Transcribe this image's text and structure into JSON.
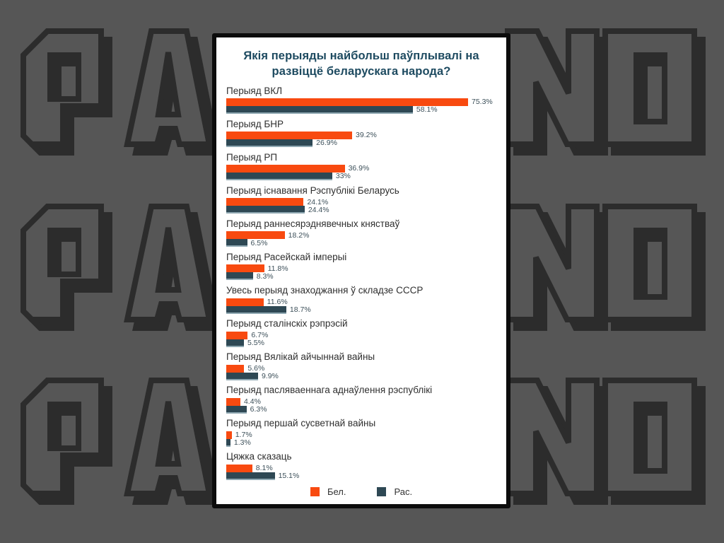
{
  "watermark": {
    "visible_left_text": "PA",
    "visible_right_text": "NO",
    "rows": 3
  },
  "colors": {
    "background": "#565656",
    "watermark_ink": "#2c2c2c",
    "card_border": "#0c0c0c",
    "card_background": "#ffffff",
    "title_text": "#1d4a60",
    "category_text": "#2f2f2f",
    "value_text": "#3c4f59",
    "bel_orange": "#f84a10",
    "ras_navy": "#2e4854"
  },
  "chart_data": {
    "type": "bar",
    "orientation": "horizontal",
    "title": "Якія перыяды найбольш паўплывалі на развіццё беларускага народа?",
    "categories": [
      "Перыяд ВКЛ",
      "Перыяд БНР",
      "Перыяд РП",
      "Перыяд існавання Рэспублікі Беларусь",
      "Перыяд раннесярэднявечных княстваў",
      "Перыяд Расейскай імперыі",
      "Увесь перыяд знаходжання ў складзе СССР",
      "Перыяд сталінскіх рэпрэсій",
      "Перыяд Вялікай айчыннай вайны",
      "Перыяд пасляваеннага аднаўлення рэспублікі",
      "Перыяд першай сусветнай вайны",
      "Цяжка сказаць"
    ],
    "series": [
      {
        "name": "Бел.",
        "color": "#f84a10",
        "values": [
          75.3,
          39.2,
          36.9,
          24.1,
          18.2,
          11.8,
          11.6,
          6.7,
          5.6,
          4.4,
          1.7,
          8.1
        ],
        "labels": [
          "75.3%",
          "39.2%",
          "36.9%",
          "24.1%",
          "18.2%",
          "11.8%",
          "11.6%",
          "6.7%",
          "5.6%",
          "4.4%",
          "1.7%",
          "8.1%"
        ]
      },
      {
        "name": "Рас.",
        "color": "#2e4854",
        "values": [
          58.1,
          26.9,
          33,
          24.4,
          6.5,
          8.3,
          18.7,
          5.5,
          9.9,
          6.3,
          1.3,
          15.1
        ],
        "labels": [
          "58.1%",
          "26.9%",
          "33%",
          "24.4%",
          "6.5%",
          "8.3%",
          "18.7%",
          "5.5%",
          "9.9%",
          "6.3%",
          "1.3%",
          "15.1%"
        ]
      }
    ],
    "xlim": [
      0,
      80
    ],
    "grid": false,
    "legend": {
      "position": "bottom",
      "entries": [
        "Бел.",
        "Рас."
      ]
    }
  }
}
